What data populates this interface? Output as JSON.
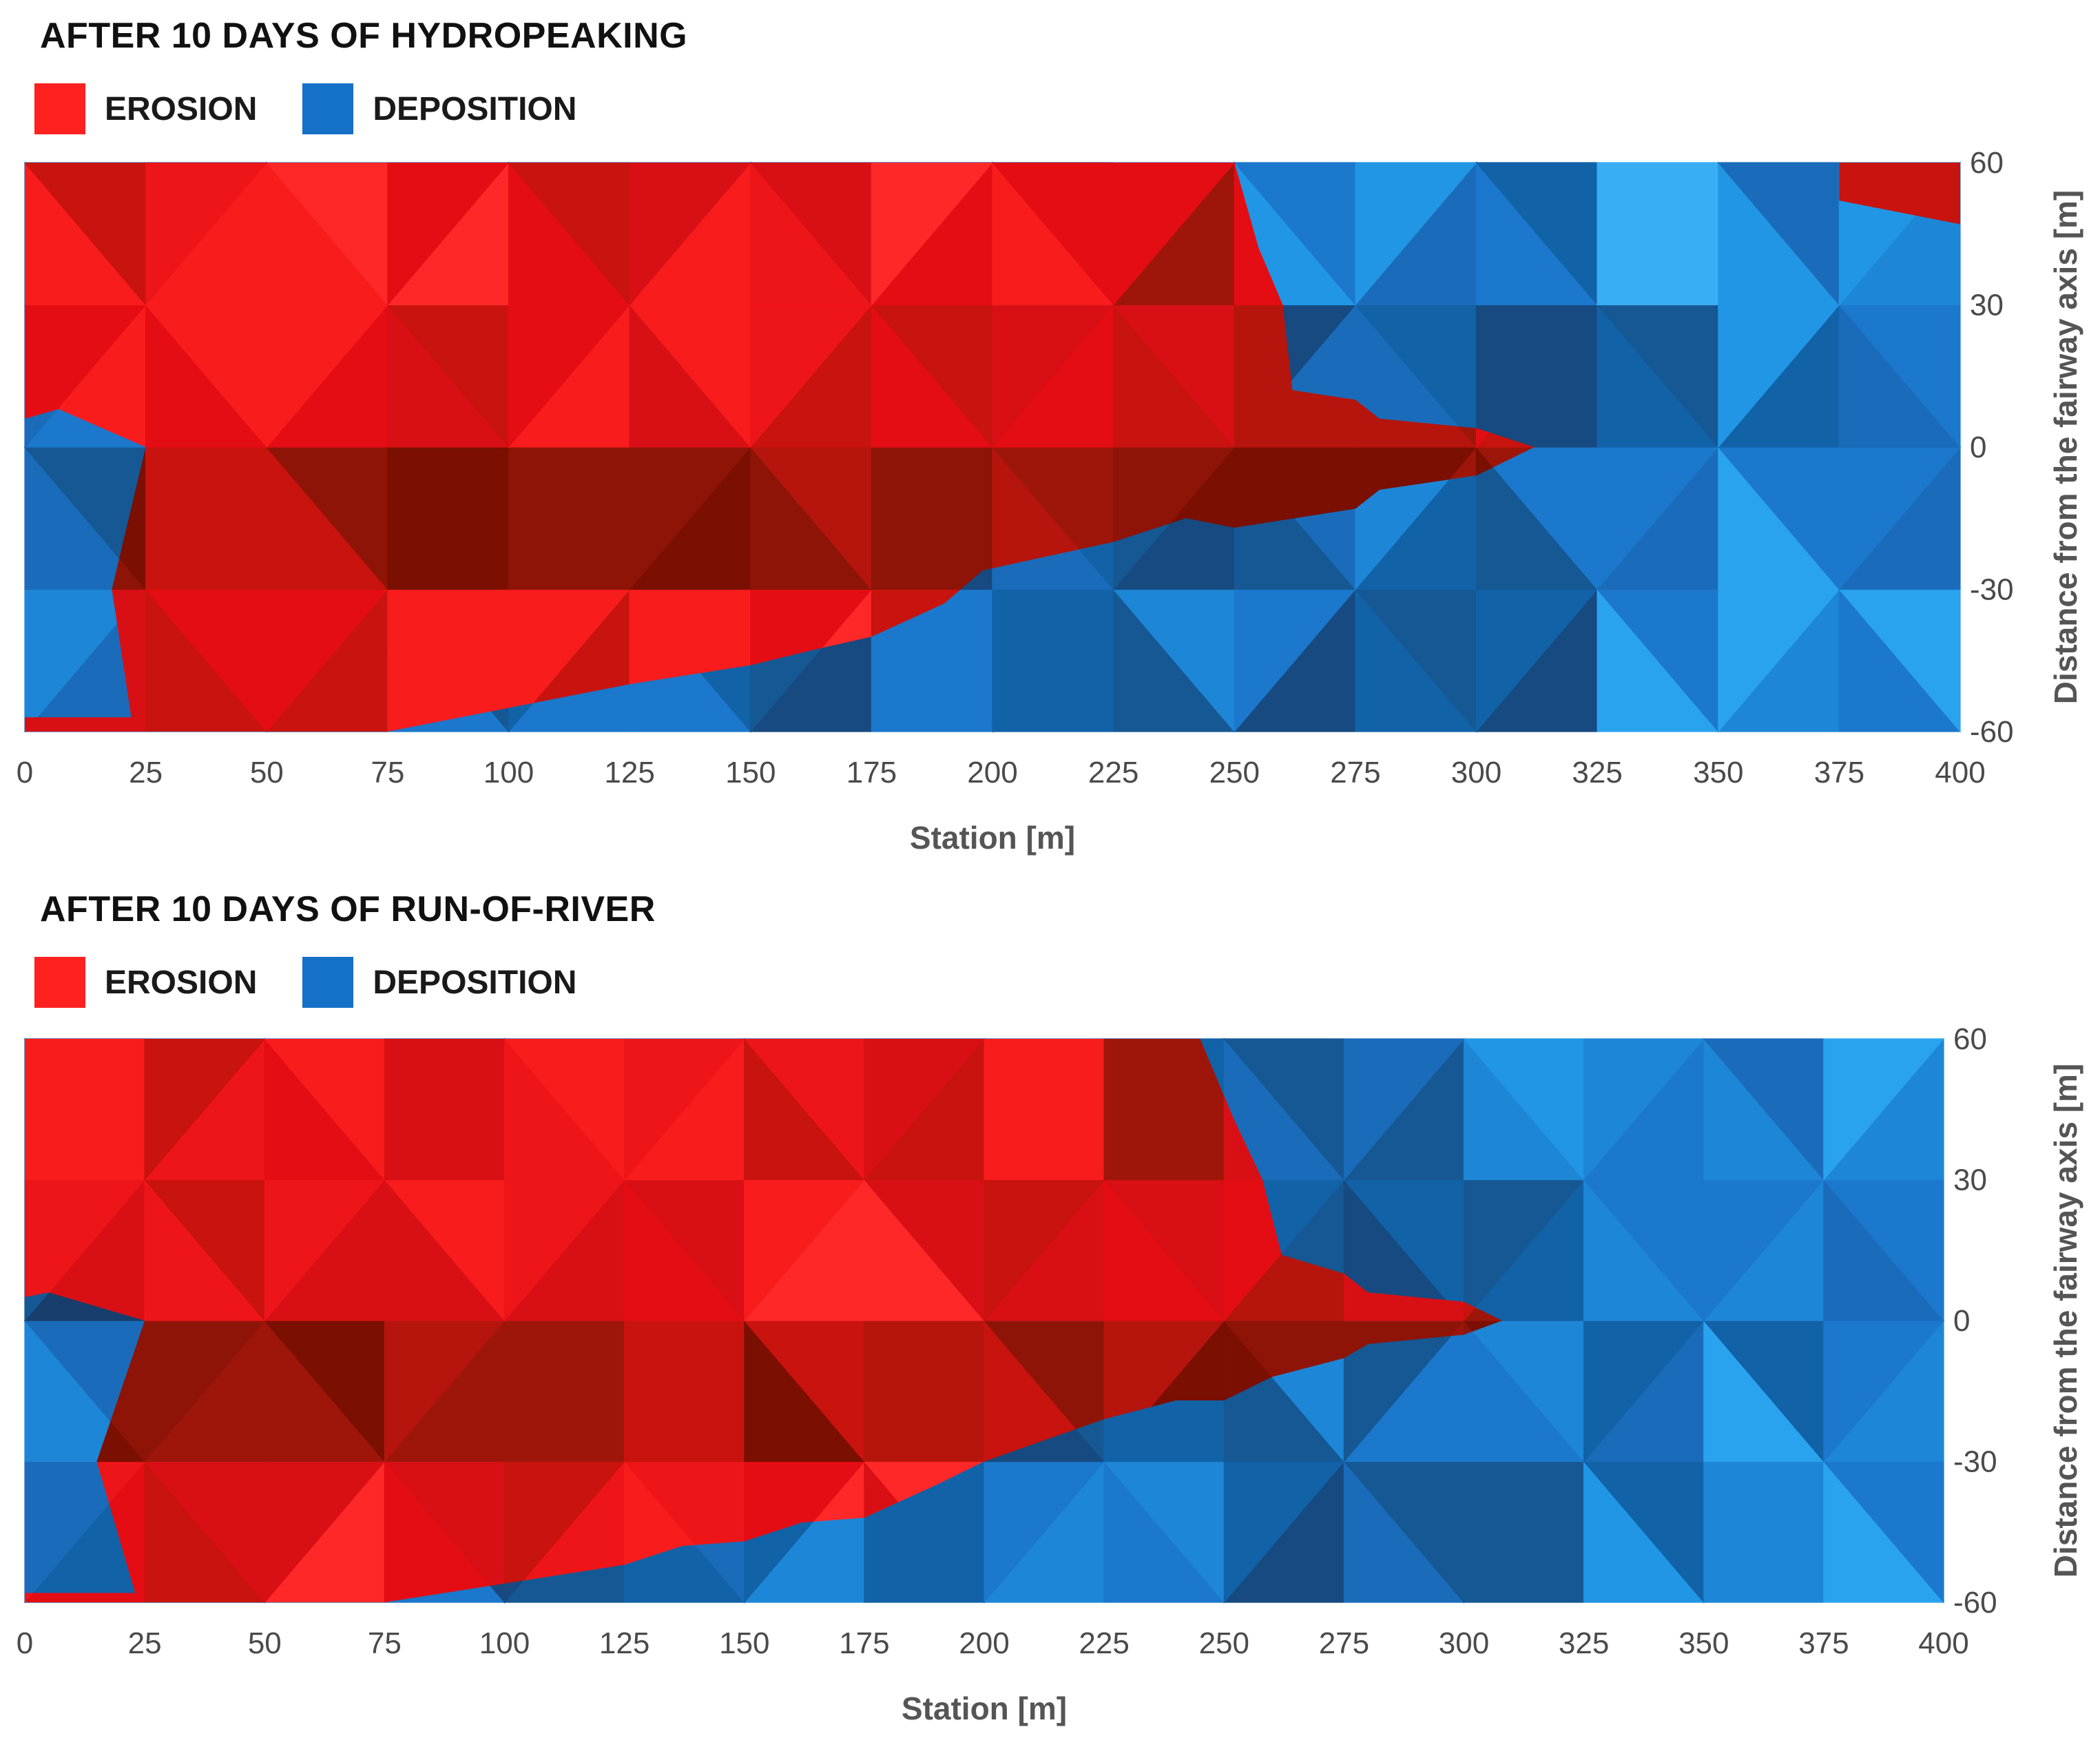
{
  "colors": {
    "erosion": "#ff2020",
    "deposition": "#1570c8",
    "tick_text": "#4a4a4a",
    "axis_title": "#555555"
  },
  "chart_data": [
    {
      "type": "heatmap",
      "title": "AFTER 10 DAYS OF HYDROPEAKING",
      "legend": [
        {
          "label": "EROSION",
          "color": "#ff2020"
        },
        {
          "label": "DEPOSITION",
          "color": "#1570c8"
        }
      ],
      "xlabel": "Station [m]",
      "ylabel": "Distance from the fairway axis [m]",
      "xlim": [
        0,
        400
      ],
      "ylim": [
        -60,
        60
      ],
      "xticks": [
        "0",
        "25",
        "50",
        "75",
        "100",
        "125",
        "150",
        "175",
        "200",
        "225",
        "250",
        "275",
        "300",
        "325",
        "350",
        "375",
        "400"
      ],
      "yticks": [
        "60",
        "30",
        "0",
        "-30",
        "-60"
      ],
      "y_axis_side": "right",
      "boundary": [
        [
          0,
          6
        ],
        [
          7,
          8
        ],
        [
          25,
          0
        ],
        [
          18,
          -30
        ],
        [
          22,
          -57
        ],
        [
          23,
          -60
        ],
        [
          75,
          -60
        ],
        [
          100,
          -55
        ],
        [
          125,
          -50
        ],
        [
          150,
          -46
        ],
        [
          162,
          -43
        ],
        [
          175,
          -40
        ],
        [
          190,
          -33
        ],
        [
          198,
          -26
        ],
        [
          225,
          -20
        ],
        [
          240,
          -15
        ],
        [
          250,
          -17
        ],
        [
          275,
          -13
        ],
        [
          280,
          -9
        ],
        [
          300,
          -6
        ],
        [
          312,
          0
        ],
        [
          300,
          4
        ],
        [
          280,
          6
        ],
        [
          275,
          10
        ],
        [
          262,
          12
        ],
        [
          260,
          30
        ],
        [
          255,
          42
        ],
        [
          250,
          60
        ]
      ],
      "extra_erosion_patches": [
        [
          [
            0,
            -57
          ],
          [
            25,
            -57
          ],
          [
            25,
            -60
          ],
          [
            0,
            -60
          ]
        ],
        [
          [
            375,
            60
          ],
          [
            400,
            60
          ],
          [
            400,
            47
          ],
          [
            375,
            52
          ]
        ]
      ]
    },
    {
      "type": "heatmap",
      "title": "AFTER 10 DAYS OF RUN-OF-RIVER",
      "legend": [
        {
          "label": "EROSION",
          "color": "#ff2020"
        },
        {
          "label": "DEPOSITION",
          "color": "#1570c8"
        }
      ],
      "xlabel": "Station [m]",
      "ylabel": "Distance from the fairway axis [m]",
      "xlim": [
        0,
        400
      ],
      "ylim": [
        -60,
        60
      ],
      "xticks": [
        "0",
        "25",
        "50",
        "75",
        "100",
        "125",
        "150",
        "175",
        "200",
        "225",
        "250",
        "275",
        "300",
        "325",
        "350",
        "375",
        "400"
      ],
      "yticks": [
        "60",
        "30",
        "0",
        "-30",
        "-60"
      ],
      "y_axis_side": "right",
      "boundary": [
        [
          0,
          5
        ],
        [
          5,
          6
        ],
        [
          25,
          0
        ],
        [
          15,
          -30
        ],
        [
          23,
          -58
        ],
        [
          24,
          -60
        ],
        [
          75,
          -60
        ],
        [
          100,
          -56
        ],
        [
          125,
          -52
        ],
        [
          137,
          -48
        ],
        [
          150,
          -47
        ],
        [
          162,
          -43
        ],
        [
          175,
          -42
        ],
        [
          190,
          -35
        ],
        [
          200,
          -30
        ],
        [
          225,
          -21
        ],
        [
          240,
          -17
        ],
        [
          250,
          -17
        ],
        [
          260,
          -12
        ],
        [
          275,
          -8
        ],
        [
          280,
          -5
        ],
        [
          300,
          -3
        ],
        [
          308,
          0
        ],
        [
          300,
          4
        ],
        [
          280,
          6
        ],
        [
          275,
          10
        ],
        [
          262,
          14
        ],
        [
          258,
          30
        ],
        [
          252,
          43
        ],
        [
          245,
          60
        ]
      ],
      "extra_erosion_patches": [
        [
          [
            0,
            -58
          ],
          [
            24,
            -58
          ],
          [
            24,
            -60
          ],
          [
            0,
            -60
          ]
        ]
      ]
    }
  ]
}
